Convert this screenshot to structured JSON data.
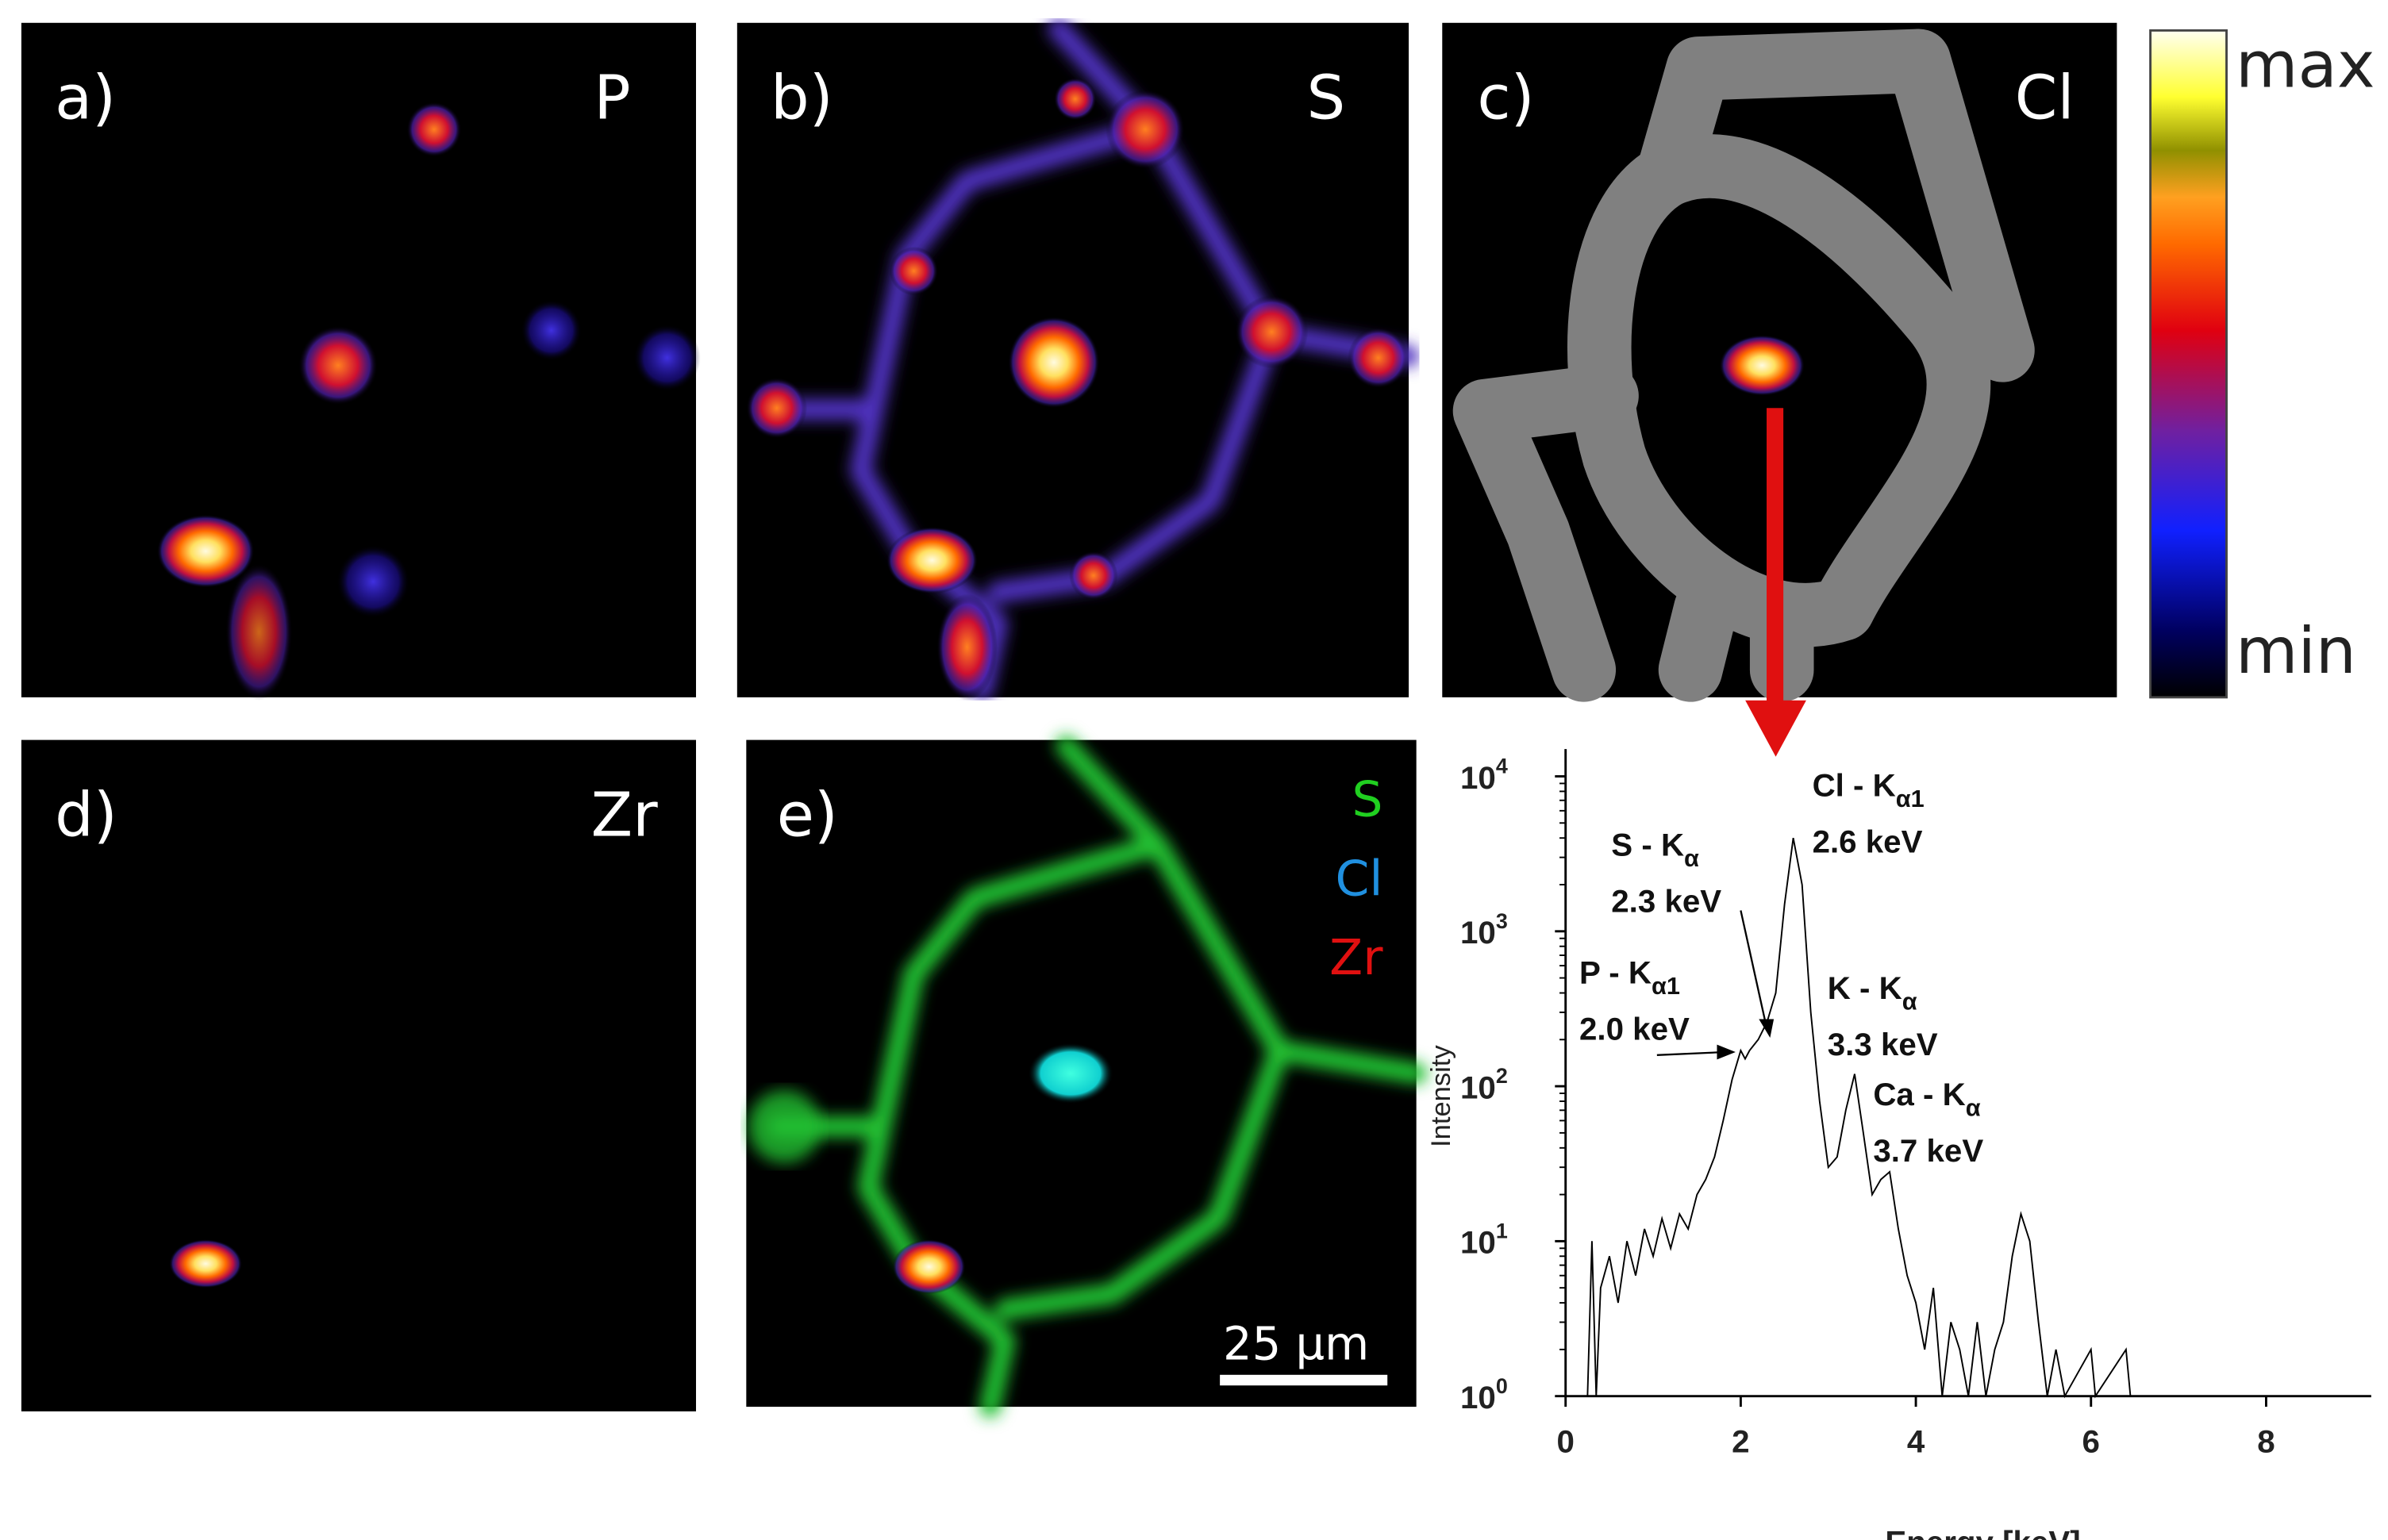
{
  "panels": [
    {
      "letter": "a)",
      "element": "P"
    },
    {
      "letter": "b)",
      "element": "S"
    },
    {
      "letter": "c)",
      "element": "Cl"
    },
    {
      "letter": "d)",
      "element": "Zr"
    },
    {
      "letter": "e)",
      "elements": [
        "S",
        "Cl",
        "Zr"
      ],
      "scale_bar": "25 µm"
    }
  ],
  "colorbar": {
    "max": "max",
    "min": "min"
  },
  "chart_data": {
    "type": "line",
    "xlabel": "Energy [keV]",
    "ylabel": "Intensity",
    "log_y": true,
    "color": "#000000",
    "xlim": [
      0,
      9.2
    ],
    "ylim": [
      1,
      15000
    ],
    "xticks": [
      0,
      2,
      4,
      6,
      8
    ],
    "yticks": [
      {
        "value": 1,
        "label": "10",
        "sup": "0"
      },
      {
        "value": 10,
        "label": "10",
        "sup": "1"
      },
      {
        "value": 100,
        "label": "10",
        "sup": "2"
      },
      {
        "value": 1000,
        "label": "10",
        "sup": "3"
      },
      {
        "value": 10000,
        "label": "10",
        "sup": "4"
      }
    ],
    "x": [
      0.25,
      0.3,
      0.35,
      0.4,
      0.5,
      0.6,
      0.7,
      0.8,
      0.9,
      1.0,
      1.1,
      1.2,
      1.3,
      1.4,
      1.5,
      1.6,
      1.7,
      1.8,
      1.9,
      2.0,
      2.05,
      2.1,
      2.2,
      2.3,
      2.4,
      2.5,
      2.6,
      2.7,
      2.8,
      2.9,
      3.0,
      3.1,
      3.2,
      3.3,
      3.4,
      3.5,
      3.6,
      3.7,
      3.8,
      3.9,
      4.0,
      4.1,
      4.2,
      4.3,
      4.4,
      4.5,
      4.6,
      4.7,
      4.8,
      4.9,
      5.0,
      5.1,
      5.2,
      5.3,
      5.4,
      5.5,
      5.6,
      5.7,
      6.0,
      6.05,
      6.4,
      6.45,
      9.0
    ],
    "values": [
      1,
      10,
      1,
      5,
      8,
      4,
      10,
      6,
      12,
      8,
      14,
      9,
      15,
      12,
      20,
      25,
      35,
      60,
      110,
      170,
      150,
      170,
      200,
      260,
      400,
      1500,
      4000,
      2000,
      300,
      80,
      30,
      35,
      70,
      120,
      50,
      20,
      25,
      28,
      12,
      6,
      4,
      2,
      5,
      1,
      3,
      2,
      1,
      3,
      1,
      2,
      3,
      8,
      15,
      10,
      3,
      1,
      2,
      1,
      2,
      1,
      2,
      1,
      1
    ],
    "annotations": [
      {
        "text": "Cl - K",
        "sub": "α1",
        "energy": "2.6 keV"
      },
      {
        "text": "S - K",
        "sub": "α",
        "energy": "2.3 keV"
      },
      {
        "text": "P - K",
        "sub": "α1",
        "energy": "2.0 keV"
      },
      {
        "text": "K - K",
        "sub": "α",
        "energy": "3.3 keV"
      },
      {
        "text": "Ca - K",
        "sub": "α",
        "energy": "3.7 keV"
      }
    ]
  }
}
